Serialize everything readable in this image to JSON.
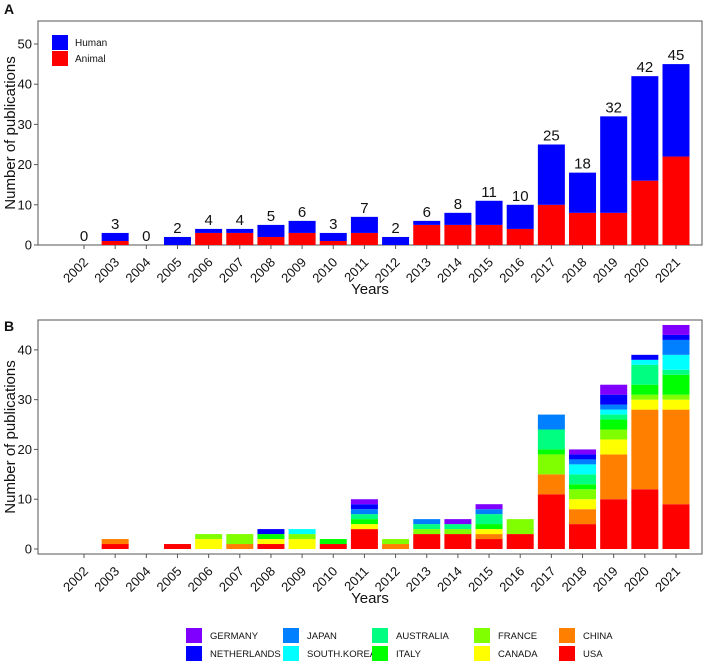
{
  "chart_data": [
    {
      "panel": "A",
      "type": "bar",
      "stacked": true,
      "categories": [
        "2002",
        "2003",
        "2004",
        "2005",
        "2006",
        "2007",
        "2008",
        "2009",
        "2010",
        "2011",
        "2012",
        "2013",
        "2014",
        "2015",
        "2016",
        "2017",
        "2018",
        "2019",
        "2020",
        "2021"
      ],
      "series": [
        {
          "name": "Animal",
          "color": "#ff0000",
          "values": [
            0,
            1,
            0,
            0,
            3,
            3,
            2,
            3,
            1,
            3,
            0,
            5,
            5,
            5,
            4,
            10,
            8,
            8,
            16,
            22
          ]
        },
        {
          "name": "Human",
          "color": "#0000ff",
          "values": [
            0,
            2,
            0,
            2,
            1,
            1,
            3,
            3,
            2,
            4,
            2,
            1,
            3,
            6,
            6,
            15,
            10,
            24,
            26,
            23
          ]
        }
      ],
      "totals": [
        "0",
        "3",
        "0",
        "2",
        "4",
        "4",
        "5",
        "6",
        "3",
        "7",
        "2",
        "6",
        "8",
        "11",
        "10",
        "25",
        "18",
        "32",
        "42",
        "45"
      ],
      "legend_order": [
        "Human",
        "Animal"
      ],
      "legend_position": "top-left",
      "xlabel": "Years",
      "ylabel": "Number of publications",
      "ylim": [
        0,
        50
      ],
      "yticks": [
        "0",
        "10",
        "20",
        "30",
        "40",
        "50"
      ]
    },
    {
      "panel": "B",
      "type": "bar",
      "stacked": true,
      "categories": [
        "2002",
        "2003",
        "2004",
        "2005",
        "2006",
        "2007",
        "2008",
        "2009",
        "2010",
        "2011",
        "2012",
        "2013",
        "2014",
        "2015",
        "2016",
        "2017",
        "2018",
        "2019",
        "2020",
        "2021"
      ],
      "series": [
        {
          "name": "USA",
          "color": "#ff0000",
          "values": [
            0,
            1,
            0,
            1,
            0,
            0,
            1,
            0,
            1,
            4,
            0,
            3,
            3,
            2,
            3,
            11,
            5,
            10,
            12,
            9
          ]
        },
        {
          "name": "CHINA",
          "color": "#ff8000",
          "values": [
            0,
            1,
            0,
            0,
            0,
            1,
            0,
            0,
            0,
            0,
            1,
            0,
            0,
            1,
            0,
            4,
            3,
            9,
            16,
            19
          ]
        },
        {
          "name": "CANADA",
          "color": "#ffff00",
          "values": [
            0,
            0,
            0,
            0,
            2,
            0,
            1,
            2,
            0,
            1,
            0,
            0,
            0,
            1,
            0,
            0,
            2,
            3,
            2,
            2
          ]
        },
        {
          "name": "FRANCE",
          "color": "#80ff00",
          "values": [
            0,
            0,
            0,
            0,
            1,
            2,
            0,
            1,
            0,
            0,
            1,
            1,
            1,
            0,
            3,
            4,
            2,
            2,
            1,
            1
          ]
        },
        {
          "name": "ITALY",
          "color": "#00ff00",
          "values": [
            0,
            0,
            0,
            0,
            0,
            0,
            1,
            0,
            1,
            1,
            0,
            0,
            0,
            1,
            0,
            1,
            1,
            2,
            2,
            4
          ]
        },
        {
          "name": "AUSTRALIA",
          "color": "#00ff80",
          "values": [
            0,
            0,
            0,
            0,
            0,
            0,
            0,
            0,
            0,
            1,
            0,
            1,
            1,
            2,
            0,
            4,
            2,
            1,
            4,
            1
          ]
        },
        {
          "name": "SOUTH.KOREA",
          "color": "#00ffff",
          "values": [
            0,
            0,
            0,
            0,
            0,
            0,
            0,
            1,
            0,
            0,
            0,
            0,
            0,
            0,
            0,
            0,
            2,
            1,
            1,
            3
          ]
        },
        {
          "name": "JAPAN",
          "color": "#0080ff",
          "values": [
            0,
            0,
            0,
            0,
            0,
            0,
            0,
            0,
            0,
            1,
            0,
            1,
            0,
            1,
            0,
            3,
            1,
            1,
            0,
            3
          ]
        },
        {
          "name": "NETHERLANDS",
          "color": "#0000ff",
          "values": [
            0,
            0,
            0,
            0,
            0,
            0,
            1,
            0,
            0,
            1,
            0,
            0,
            0,
            0,
            0,
            0,
            1,
            2,
            1,
            1
          ]
        },
        {
          "name": "GERMANY",
          "color": "#8000ff",
          "values": [
            0,
            0,
            0,
            0,
            0,
            0,
            0,
            0,
            0,
            1,
            0,
            0,
            1,
            1,
            0,
            0,
            1,
            2,
            0,
            2
          ]
        }
      ],
      "legend_position": "bottom",
      "xlabel": "Years",
      "ylabel": "Number of publications",
      "ylim": [
        0,
        46
      ],
      "yticks": [
        "0",
        "10",
        "20",
        "30",
        "40"
      ]
    }
  ],
  "legend_b_order": [
    "GERMANY",
    "NETHERLANDS",
    "JAPAN",
    "SOUTH.KOREA",
    "AUSTRALIA",
    "ITALY",
    "FRANCE",
    "CANADA",
    "CHINA",
    "USA"
  ]
}
